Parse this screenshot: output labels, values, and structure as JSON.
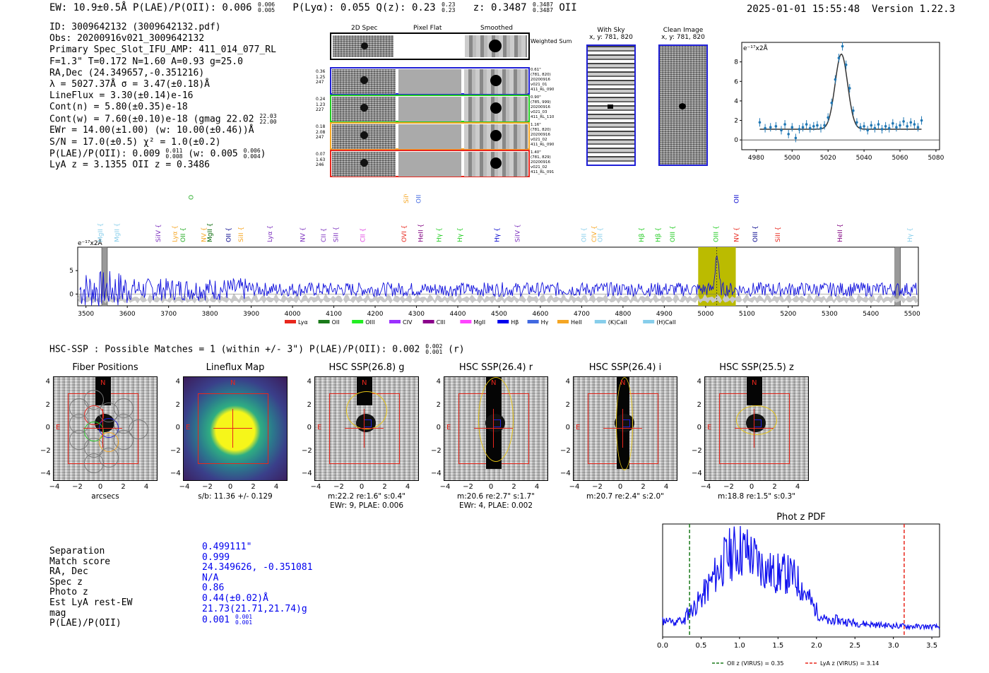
{
  "header": {
    "left": "EW: 10.9±0.5Å  P(LAE)/P(OII): 0.006",
    "frac1_top": "0.006",
    "frac1_bot": "0.005",
    "mid": "P(Lyα): 0.055  Q(z): 0.23",
    "frac2_top": "0.23",
    "frac2_bot": "0.23",
    "zlabel": "z: 0.3487",
    "frac3_top": "0.3487",
    "frac3_bot": "0.3487",
    "oii": "OII",
    "datetime": "2025-01-01 15:55:48",
    "version": "Version 1.22.3"
  },
  "info": {
    "lines": [
      "ID: 3009642132 (3009642132.pdf)",
      "Obs: 20200916v021_3009642132",
      "Primary Spec_Slot_IFU_AMP: 411_014_077_RL",
      "F=1.3\"  T=0.172  N=1.60  A=0.93  g=25.0",
      "RA,Dec (24.349657,-0.351216)",
      "λ = 5027.37Å  σ = 3.47(±0.18)Å",
      "LineFlux = 3.30(±0.14)e-16",
      "Cont(n) = 5.80(±0.35)e-18",
      "Cont(w) = 7.60(±0.10)e-18 (gmag 22.02",
      "EWr = 14.00(±1.00) (w: 10.00(±0.46))Å",
      "S/N = 17.0(±0.5)  χ² = 1.0(±0.2)",
      "P(LAE)/P(OII): 0.009",
      "LyA z = 3.1355  OII z = 0.3486"
    ],
    "gmag_top": "22.03",
    "gmag_bot": "22.00",
    "plae_top": "0.011",
    "plae_bot": "0.008",
    "plae_w": "(w: 0.005",
    "plae_w_top": "0.006",
    "plae_w_bot": "0.004",
    "plae_close": ")"
  },
  "cutouts": {
    "col_headers": [
      "2D Spec",
      "Pixel Flat",
      "Smoothed"
    ],
    "weighted_sum": "Weighted Sum",
    "rows": [
      {
        "stats": [
          "0.36",
          "1.25",
          "247"
        ],
        "meta": [
          "0.61\"",
          "(781, 820)",
          "20200916",
          "v021_01",
          "411_RL_090"
        ],
        "color": "#1f1fd6"
      },
      {
        "stats": [
          "0.24",
          "1.23",
          "227"
        ],
        "meta": [
          "0.90\"",
          "(785, 999)",
          "20200916",
          "v021_03",
          "411_RL_110"
        ],
        "color": "#22cc22"
      },
      {
        "stats": [
          "0.18",
          "2.08",
          "247"
        ],
        "meta": [
          "1.16\"",
          "(781, 820)",
          "20200916",
          "v021_02",
          "411_RL_090"
        ],
        "color": "#f5a623"
      },
      {
        "stats": [
          "0.07",
          "1.63",
          "246"
        ],
        "meta": [
          "1.40\"",
          "(781, 829)",
          "20200916",
          "v021_02",
          "411_RL_091"
        ],
        "color": "#e8261c"
      }
    ]
  },
  "sky": {
    "with_sky_title": "With Sky",
    "with_sky_xy": "x, y: 781, 820",
    "clean_title": "Clean Image",
    "clean_xy": "x, y: 781, 820"
  },
  "line_fit": {
    "ylabel": "e⁻¹⁷x2Å",
    "yticks": [
      "0",
      "2",
      "4",
      "6",
      "8"
    ],
    "xticks": [
      "4980",
      "5000",
      "5020",
      "5040",
      "5060",
      "5080"
    ],
    "xlim": [
      4972,
      5082
    ],
    "ylim": [
      -1,
      10
    ],
    "center": 5027.4,
    "sigma": 3.47,
    "amp": 7.7,
    "cont": 1.1,
    "points": [
      [
        4982,
        1.8
      ],
      [
        4985,
        1.2
      ],
      [
        4988,
        1.3
      ],
      [
        4991,
        1.4
      ],
      [
        4994,
        1.0
      ],
      [
        4996,
        1.6
      ],
      [
        4998,
        0.6
      ],
      [
        5000,
        1.3
      ],
      [
        5002,
        0.2
      ],
      [
        5004,
        1.1
      ],
      [
        5006,
        1.3
      ],
      [
        5008,
        1.6
      ],
      [
        5010,
        1.2
      ],
      [
        5012,
        1.4
      ],
      [
        5014,
        1.5
      ],
      [
        5016,
        1.2
      ],
      [
        5018,
        1.5
      ],
      [
        5020,
        2.3
      ],
      [
        5022,
        3.8
      ],
      [
        5024,
        6.2
      ],
      [
        5026,
        8.4
      ],
      [
        5028,
        9.6
      ],
      [
        5030,
        7.7
      ],
      [
        5032,
        5.3
      ],
      [
        5034,
        3.0
      ],
      [
        5036,
        1.8
      ],
      [
        5038,
        1.3
      ],
      [
        5040,
        1.4
      ],
      [
        5042,
        1.0
      ],
      [
        5044,
        1.5
      ],
      [
        5046,
        1.2
      ],
      [
        5048,
        1.6
      ],
      [
        5050,
        1.1
      ],
      [
        5052,
        1.4
      ],
      [
        5054,
        1.2
      ],
      [
        5056,
        1.7
      ],
      [
        5058,
        1.3
      ],
      [
        5060,
        1.5
      ],
      [
        5062,
        1.9
      ],
      [
        5064,
        1.4
      ],
      [
        5066,
        1.8
      ],
      [
        5068,
        1.6
      ],
      [
        5070,
        1.3
      ],
      [
        5072,
        2.0
      ]
    ]
  },
  "spectrum": {
    "ylabel": "e⁻¹⁷x2Å",
    "yticks": [
      "0",
      "5"
    ],
    "xticks": [
      "3500",
      "3600",
      "3700",
      "3800",
      "3900",
      "4000",
      "4100",
      "4200",
      "4300",
      "4400",
      "4500",
      "4600",
      "4700",
      "4800",
      "4900",
      "5000",
      "5100",
      "5200",
      "5300",
      "5400",
      "5500"
    ],
    "xlim": [
      3480,
      5515
    ],
    "ylim": [
      -2.5,
      10
    ],
    "highlight": [
      4982,
      5073
    ],
    "marker_line": 5027,
    "grey_bars": [
      3545,
      5465
    ],
    "line_labels": [
      {
        "x": 3540,
        "t": "MgII",
        "c": "#87ceeb",
        "y": 0
      },
      {
        "x": 3580,
        "t": "MgII",
        "c": "#87ceeb",
        "y": 0
      },
      {
        "x": 3680,
        "t": "SiIV",
        "c": "#7b2fbe",
        "y": 0
      },
      {
        "x": 3720,
        "t": "Lyα",
        "c": "#f5a623",
        "y": 0
      },
      {
        "x": 3740,
        "t": "OII",
        "c": "#22aa22",
        "y": 0
      },
      {
        "x": 3760,
        "t": "OII",
        "c": "#22aa22",
        "y": -60
      },
      {
        "x": 3790,
        "t": "NV",
        "c": "#f5a623",
        "y": 0
      },
      {
        "x": 3805,
        "t": "MgII",
        "c": "#006400",
        "y": 0
      },
      {
        "x": 3850,
        "t": "OII",
        "c": "#00008b",
        "y": 0
      },
      {
        "x": 3880,
        "t": "SiII",
        "c": "#f5a623",
        "y": 0
      },
      {
        "x": 3950,
        "t": "Lyα",
        "c": "#7b2fbe",
        "y": 0
      },
      {
        "x": 4030,
        "t": "NV",
        "c": "#7b2fbe",
        "y": 0
      },
      {
        "x": 4080,
        "t": "CII",
        "c": "#7b2fbe",
        "y": 0
      },
      {
        "x": 4110,
        "t": "SiII",
        "c": "#7b2fbe",
        "y": 0
      },
      {
        "x": 4175,
        "t": "CII",
        "c": "#e040e0",
        "y": 0
      },
      {
        "x": 4275,
        "t": "OVI",
        "c": "#e8261c",
        "y": 0
      },
      {
        "x": 4280,
        "t": "SiIV",
        "c": "#f5a623",
        "y": -55
      },
      {
        "x": 4310,
        "t": "OII",
        "c": "#4169e1",
        "y": -55
      },
      {
        "x": 4315,
        "t": "HeII",
        "c": "#800080",
        "y": 0
      },
      {
        "x": 4360,
        "t": "Hγ",
        "c": "#22cc22",
        "y": 0
      },
      {
        "x": 4410,
        "t": "Hγ",
        "c": "#22cc22",
        "y": 0
      },
      {
        "x": 4500,
        "t": "Hγ",
        "c": "#0000cd",
        "y": 0
      },
      {
        "x": 4550,
        "t": "SiIV",
        "c": "#7b2fbe",
        "y": 0
      },
      {
        "x": 4710,
        "t": "OII",
        "c": "#87ceeb",
        "y": 0
      },
      {
        "x": 4735,
        "t": "CIV",
        "c": "#f5a623",
        "y": 0
      },
      {
        "x": 4750,
        "t": "OII",
        "c": "#87ceeb",
        "y": 0
      },
      {
        "x": 4850,
        "t": "Hβ",
        "c": "#22cc22",
        "y": 0
      },
      {
        "x": 4890,
        "t": "Hβ",
        "c": "#22cc22",
        "y": 0
      },
      {
        "x": 4925,
        "t": "OIII",
        "c": "#22cc22",
        "y": 0
      },
      {
        "x": 5030,
        "t": "OIII",
        "c": "#22cc22",
        "y": 0
      },
      {
        "x": 5080,
        "t": "NV",
        "c": "#e8261c",
        "y": 0
      },
      {
        "x": 5080,
        "t": "OIII",
        "c": "#0000cd",
        "y": -55
      },
      {
        "x": 5125,
        "t": "OIII",
        "c": "#00008b",
        "y": 0
      },
      {
        "x": 5180,
        "t": "SiII",
        "c": "#e8261c",
        "y": 0
      },
      {
        "x": 5330,
        "t": "HeII",
        "c": "#800080",
        "y": 0
      },
      {
        "x": 5500,
        "t": "Hγ",
        "c": "#87ceeb",
        "y": 0
      }
    ],
    "legend": [
      {
        "name": "Lyα",
        "c": "#e8261c"
      },
      {
        "name": "OII",
        "c": "#1a7a1a"
      },
      {
        "name": "OIII",
        "c": "#22ee22"
      },
      {
        "name": "CIV",
        "c": "#9b30ff"
      },
      {
        "name": "CIII",
        "c": "#8b008b"
      },
      {
        "name": "MgII",
        "c": "#ff44ff"
      },
      {
        "name": "Hβ",
        "c": "#0000ee"
      },
      {
        "name": "Hγ",
        "c": "#4169e1"
      },
      {
        "name": "HeII",
        "c": "#f5a623"
      },
      {
        "name": "(K)CaII",
        "c": "#87ceeb"
      },
      {
        "name": "(H)CaII",
        "c": "#87ceeb"
      }
    ]
  },
  "hsc": {
    "summary": "HSC-SSP : Possible Matches = 1 (within +/- 3\")  P(LAE)/P(OII): 0.002",
    "sum_top": "0.002",
    "sum_bot": "0.001",
    "sum_tail": "(r)",
    "ticks": [
      "−4",
      "−2",
      "0",
      "2",
      "4"
    ],
    "panels": [
      {
        "title": "Fiber Positions",
        "caption": "arcsecs",
        "caption2": ""
      },
      {
        "title": "Lineflux Map",
        "caption": "s/b: 11.36 +/- 0.129",
        "caption2": ""
      },
      {
        "title": "HSC SSP(26.8) g",
        "caption": "m:22.2  re:1.6\"  s:0.4\"",
        "caption2": "EWr: 9, PLAE: 0.006"
      },
      {
        "title": "HSC SSP(26.4) r",
        "caption": "m:20.6  re:2.7\"  s:1.7\"",
        "caption2": "EWr: 4, PLAE: 0.002"
      },
      {
        "title": "HSC SSP(26.4) i",
        "caption": "m:20.7  re:2.4\"  s:2.0\"",
        "caption2": ""
      },
      {
        "title": "HSC SSP(25.5) z",
        "caption": "m:18.8  re:1.5\"  s:0.3\"",
        "caption2": ""
      }
    ],
    "n_label": "N",
    "e_label": "E"
  },
  "match": {
    "labels": [
      "Separation",
      "Match score",
      "RA, Dec",
      "Spec z",
      "Photo z",
      "Est LyA rest-EW",
      "mag",
      "P(LAE)/P(OII)"
    ],
    "values": [
      "0.499111\"",
      "0.999",
      "24.349626, -0.351081",
      "N/A",
      "0.86",
      "0.44(±0.02)Å",
      "21.73(21.71,21.74)g",
      "0.001"
    ],
    "plae_top": "0.001",
    "plae_bot": "0.001"
  },
  "photz": {
    "title": "Phot z PDF",
    "xticks": [
      "0.0",
      "0.5",
      "1.0",
      "1.5",
      "2.0",
      "2.5",
      "3.0",
      "3.5"
    ],
    "xlim": [
      0,
      3.6
    ],
    "oii_z": 0.35,
    "lya_z": 3.14,
    "legend_oii": "OII z (VIRUS) = 0.35",
    "legend_lya": "LyA z (VIRUS) = 3.14"
  }
}
